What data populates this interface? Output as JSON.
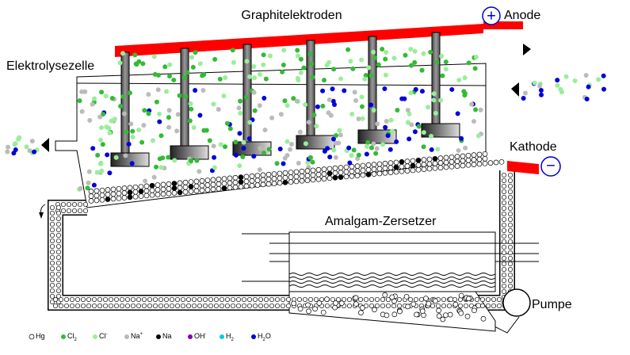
{
  "labels": {
    "electrodes": "Graphitelektroden",
    "anode": "Anode",
    "anode_sign": "+",
    "cell": "Elektrolysezelle",
    "cathode": "Kathode",
    "cathode_sign": "−",
    "decomposer": "Amalgam-Zersetzer",
    "pump": "Pumpe"
  },
  "legend": [
    {
      "label": "Hg",
      "color": "#ffffff"
    },
    {
      "label": "Cl",
      "sub": "2",
      "color": "#33bb33"
    },
    {
      "label": "Cl",
      "sup": "-",
      "color": "#99ee99"
    },
    {
      "label": "Na",
      "sup": "+",
      "color": "#bbbbbb"
    },
    {
      "label": "Na",
      "color": "#000000"
    },
    {
      "label": "OH",
      "sup": "-",
      "color": "#8800aa"
    },
    {
      "label": "H",
      "sub": "2",
      "color": "#00ccee"
    },
    {
      "label": "H",
      "sub": "2",
      "tail": "O",
      "color": "#0000dd"
    }
  ]
}
